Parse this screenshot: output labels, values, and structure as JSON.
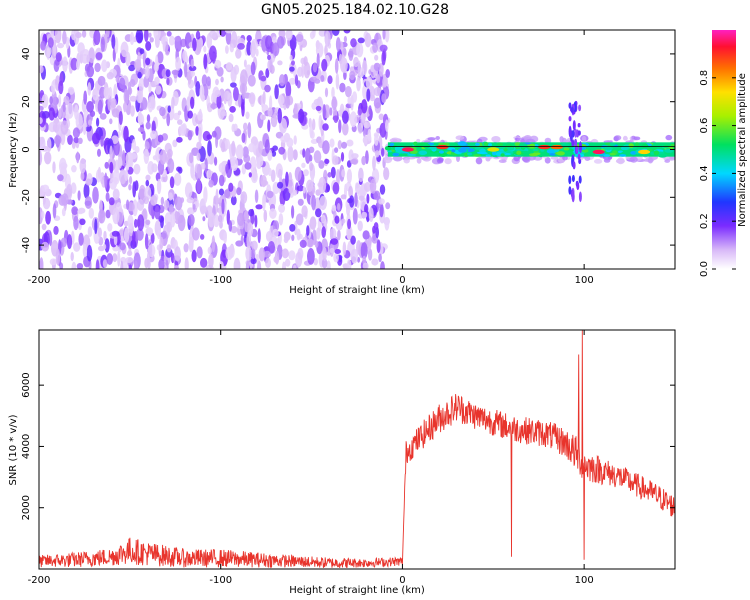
{
  "chart_data": [
    {
      "type": "heatmap",
      "title": "GN05.2025.184.02.10.G28",
      "xlabel": "Height of straight line (km)",
      "ylabel": "Frequency (Hz)",
      "xlim": [
        -200,
        150
      ],
      "ylim": [
        -50,
        50
      ],
      "xticks": [
        "-200",
        "-100",
        "0",
        "100"
      ],
      "yticks": [
        "40",
        "20",
        "0",
        "-20",
        "-40"
      ],
      "colorbar": {
        "label": "Normalized spectral amplitude",
        "range": [
          0,
          1
        ],
        "ticks": [
          "0.0",
          "0.2",
          "0.4",
          "0.6",
          "0.8"
        ]
      },
      "regions": [
        {
          "x_from": -200,
          "x_to": -8,
          "description_level": "low",
          "freq_span": [
            -50,
            50
          ],
          "color": "#8a2be2"
        },
        {
          "x_from": -8,
          "x_to": 150,
          "description_level": "high",
          "freq_span": [
            -3,
            3
          ],
          "color": "#00e070"
        }
      ],
      "hotspots": [
        {
          "x": 3,
          "y": 0,
          "amp": 0.95
        },
        {
          "x": 22,
          "y": 1,
          "amp": 0.9
        },
        {
          "x": 50,
          "y": 0,
          "amp": 0.7
        },
        {
          "x": 78,
          "y": 1,
          "amp": 0.9
        },
        {
          "x": 85,
          "y": 1,
          "amp": 0.85
        },
        {
          "x": 108,
          "y": -1,
          "amp": 0.95
        },
        {
          "x": 133,
          "y": -1,
          "amp": 0.75
        }
      ]
    },
    {
      "type": "line",
      "title": "",
      "xlabel": "Height of straight line (km)",
      "ylabel": "SNR (10 * v/v)",
      "xlim": [
        -200,
        150
      ],
      "ylim": [
        0,
        7800
      ],
      "xticks": [
        "-200",
        "-100",
        "0",
        "100"
      ],
      "yticks": [
        "2000",
        "4000",
        "6000"
      ],
      "color": "#e8342c",
      "envelope": {
        "x": [
          -200,
          -180,
          -160,
          -150,
          -140,
          -120,
          -100,
          -80,
          -60,
          -40,
          -20,
          0,
          2,
          10,
          20,
          30,
          40,
          50,
          60,
          70,
          80,
          90,
          95,
          100,
          110,
          120,
          130,
          140,
          150
        ],
        "mean": [
          250,
          300,
          400,
          600,
          500,
          350,
          350,
          300,
          250,
          200,
          200,
          250,
          3800,
          4300,
          4900,
          5300,
          5000,
          4800,
          4600,
          4500,
          4400,
          4100,
          3800,
          3400,
          3200,
          3000,
          2700,
          2400,
          2000
        ],
        "noise": [
          200,
          250,
          300,
          450,
          400,
          300,
          300,
          250,
          200,
          180,
          150,
          150,
          400,
          450,
          500,
          500,
          450,
          450,
          450,
          450,
          450,
          500,
          600,
          550,
          450,
          400,
          400,
          400,
          400
        ]
      },
      "spikes": [
        {
          "x": 60,
          "y": 400
        },
        {
          "x": 97,
          "y": 7000
        },
        {
          "x": 99,
          "y": 7800
        },
        {
          "x": 100,
          "y": 300
        }
      ]
    }
  ]
}
